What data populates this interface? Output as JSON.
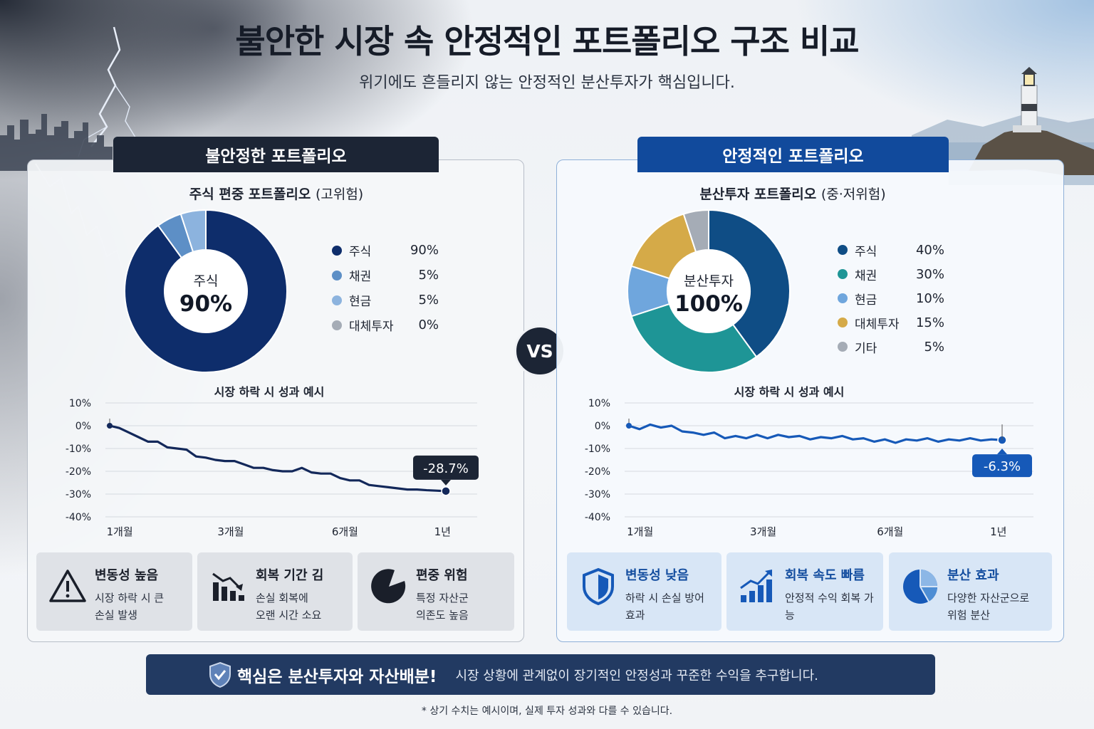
{
  "header": {
    "title": "불안한 시장 속 안정적인 포트폴리오 구조 비교",
    "subtitle": "위기에도 흔들리지 않는 안정적인 분산투자가 핵심입니다."
  },
  "vs_label": "VS",
  "left": {
    "tab": "불안정한 포트폴리오",
    "donut_title": "주식 편중 포트폴리오",
    "donut_title_note": "(고위험)",
    "center_label": "주식",
    "center_value": "90%",
    "legend": [
      {
        "name": "주식",
        "pct": "90%"
      },
      {
        "name": "채권",
        "pct": "5%"
      },
      {
        "name": "현금",
        "pct": "5%"
      },
      {
        "name": "대체투자",
        "pct": "0%"
      }
    ],
    "line_title": "시장 하락 시 성과 예시",
    "end_label": "-28.7%",
    "cards": [
      {
        "title": "변동성 높음",
        "desc1": "시장 하락 시 큰",
        "desc2": "손실 발생"
      },
      {
        "title": "회복 기간 김",
        "desc1": "손실 회복에",
        "desc2": "오랜 시간 소요"
      },
      {
        "title": "편중 위험",
        "desc1": "특정 자산군",
        "desc2": "의존도 높음"
      }
    ]
  },
  "right": {
    "tab": "안정적인 포트폴리오",
    "donut_title": "분산투자 포트폴리오",
    "donut_title_note": "(중·저위험)",
    "center_label": "분산투자",
    "center_value": "100%",
    "legend": [
      {
        "name": "주식",
        "pct": "40%"
      },
      {
        "name": "채권",
        "pct": "30%"
      },
      {
        "name": "현금",
        "pct": "10%"
      },
      {
        "name": "대체투자",
        "pct": "15%"
      },
      {
        "name": "기타",
        "pct": "5%"
      }
    ],
    "line_title": "시장 하락 시 성과 예시",
    "end_label": "-6.3%",
    "cards": [
      {
        "title": "변동성 낮음",
        "desc1": "하락 시 손실 방어",
        "desc2": "효과"
      },
      {
        "title": "회복 속도 빠름",
        "desc1": "안정적 수익 회복 가능",
        "desc2": ""
      },
      {
        "title": "분산 효과",
        "desc1": "다양한 자산군으로",
        "desc2": "위험 분산"
      }
    ]
  },
  "banner": {
    "strong": "핵심은 분산투자와 자산배분!",
    "text": "시장 상황에 관계없이 장기적인 안정성과 꾸준한 수익을 추구합니다."
  },
  "footnote": "* 상기 수치는 예시이며, 실제 투자 성과와 다를 수 있습니다.",
  "colors": {
    "navy": "#0e2d6b",
    "dark": "#1c2535",
    "blue": "#114a9c",
    "line_left": "#13285a",
    "line_right": "#1659b8"
  },
  "chart_data": [
    {
      "type": "pie",
      "title": "주식 편중 포트폴리오 (고위험)",
      "categories": [
        "주식",
        "채권",
        "현금",
        "대체투자"
      ],
      "values": [
        90,
        5,
        5,
        0
      ],
      "colors": [
        "#0e2d6b",
        "#5d8fc6",
        "#8cb3de",
        "#a5acb6"
      ]
    },
    {
      "type": "pie",
      "title": "분산투자 포트폴리오 (중·저위험)",
      "categories": [
        "주식",
        "채권",
        "현금",
        "대체투자",
        "기타"
      ],
      "values": [
        40,
        30,
        10,
        15,
        5
      ],
      "colors": [
        "#0f4d85",
        "#1e9596",
        "#6fa6dd",
        "#d5aa48",
        "#a5acb6"
      ]
    },
    {
      "type": "line",
      "title": "시장 하락 시 성과 예시",
      "x_ticks": [
        "1개월",
        "3개월",
        "6개월",
        "1년"
      ],
      "y_ticks": [
        "10%",
        "0%",
        "-10%",
        "-20%",
        "-30%",
        "-40%"
      ],
      "ylim": [
        -40,
        10
      ],
      "x": [
        0,
        1,
        2,
        3,
        4,
        5,
        6,
        7,
        8,
        9,
        10,
        11,
        12,
        13,
        14,
        15,
        16,
        17,
        18,
        19,
        20,
        21,
        22,
        23,
        24,
        25,
        26,
        27,
        28,
        29,
        30,
        31,
        32,
        33,
        34,
        35
      ],
      "series": [
        {
          "values": [
            0,
            -1,
            -3,
            -5,
            -7,
            -7,
            -9.5,
            -10,
            -10.5,
            -13.5,
            -14,
            -15,
            -15.5,
            -15.5,
            -17,
            -18.5,
            -18.5,
            -19.5,
            -20,
            -20,
            -18.5,
            -20.5,
            -21,
            -21,
            -23,
            -24,
            -24,
            -26,
            -26.5,
            -27,
            -27.5,
            -28,
            -28,
            -28.3,
            -28.5,
            -28.7
          ]
        }
      ],
      "end_label": "-28.7%"
    },
    {
      "type": "line",
      "title": "시장 하락 시 성과 예시",
      "x_ticks": [
        "1개월",
        "3개월",
        "6개월",
        "1년"
      ],
      "y_ticks": [
        "10%",
        "0%",
        "-10%",
        "-20%",
        "-30%",
        "-40%"
      ],
      "ylim": [
        -40,
        10
      ],
      "x": [
        0,
        1,
        2,
        3,
        4,
        5,
        6,
        7,
        8,
        9,
        10,
        11,
        12,
        13,
        14,
        15,
        16,
        17,
        18,
        19,
        20,
        21,
        22,
        23,
        24,
        25,
        26,
        27,
        28,
        29,
        30,
        31,
        32,
        33,
        34,
        35
      ],
      "series": [
        {
          "values": [
            0,
            -1.5,
            0.5,
            -0.8,
            0,
            -2.5,
            -3,
            -4,
            -3,
            -5.5,
            -4.5,
            -5.5,
            -4,
            -5.5,
            -4,
            -5,
            -4.5,
            -6,
            -5,
            -5.5,
            -4.5,
            -6,
            -5.5,
            -7,
            -6,
            -7.5,
            -6,
            -6.5,
            -5.5,
            -7,
            -6,
            -6.5,
            -5.5,
            -6.5,
            -6,
            -6.3
          ]
        }
      ],
      "end_label": "-6.3%"
    }
  ]
}
